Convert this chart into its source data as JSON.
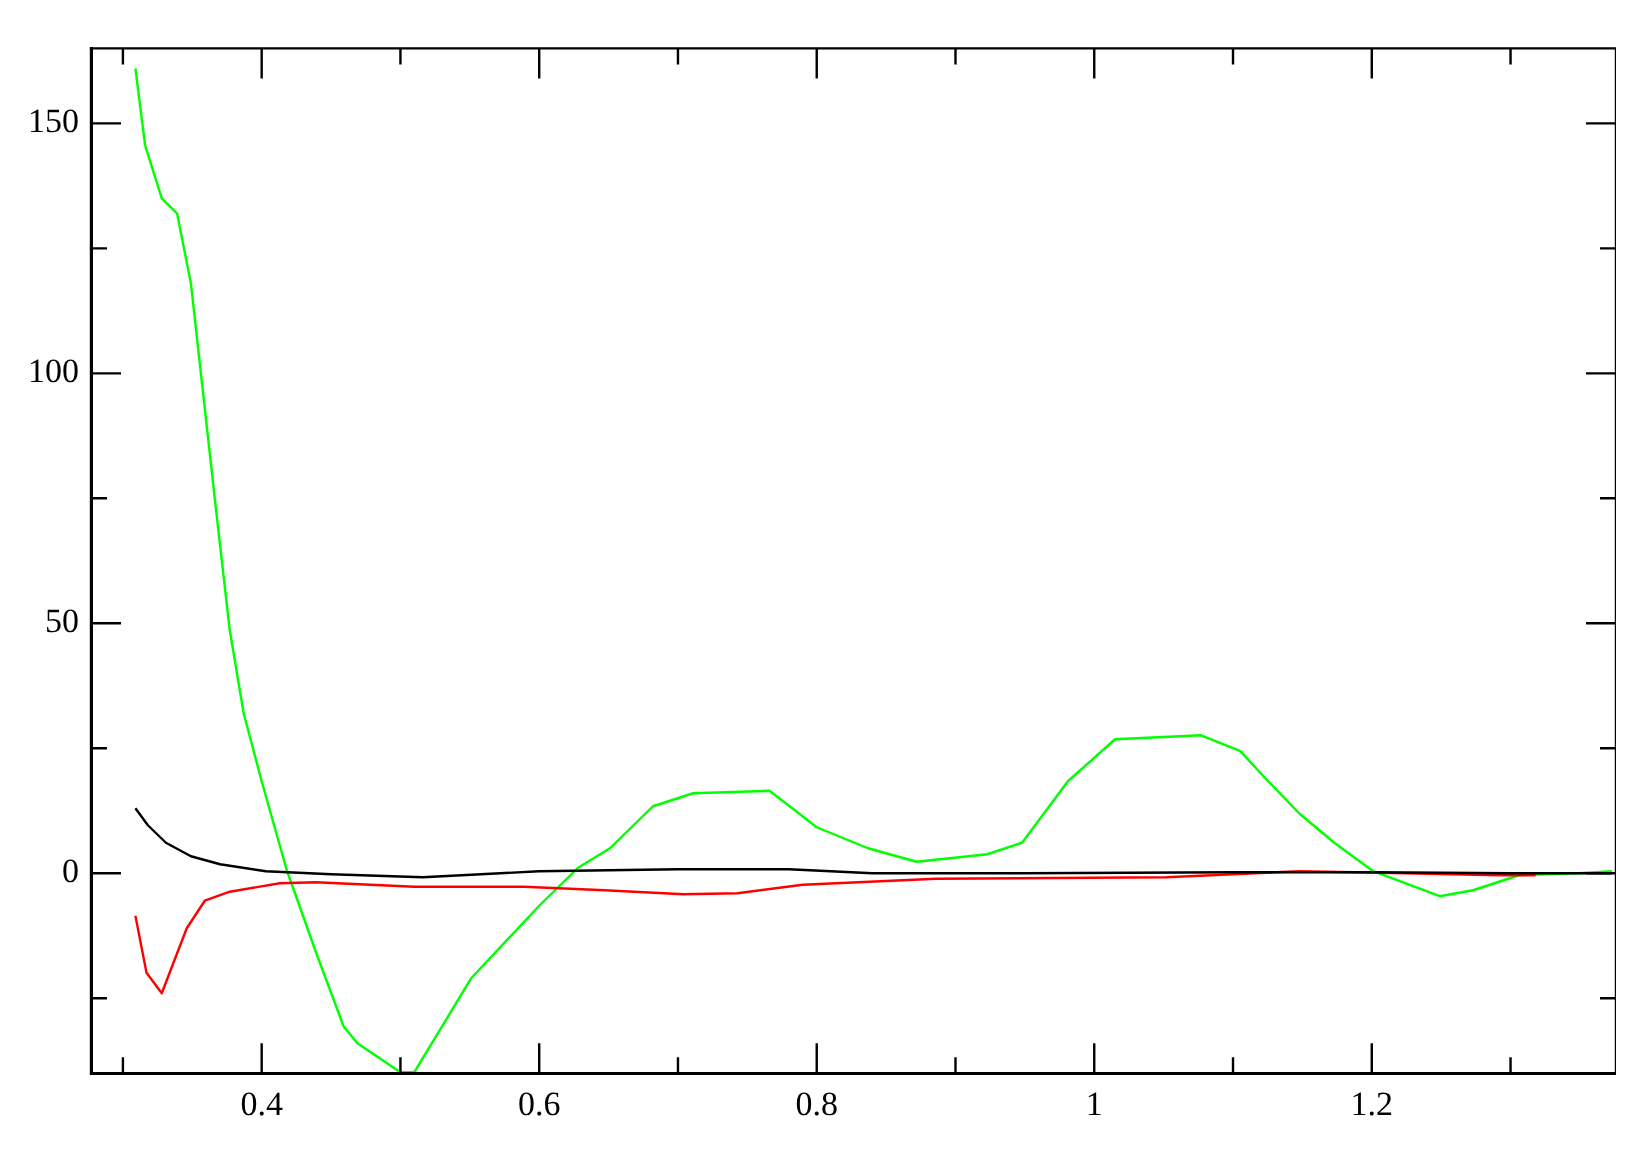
{
  "chart_data": {
    "type": "line",
    "xlim": [
      0.277,
      1.376
    ],
    "ylim": [
      -40,
      165
    ],
    "xticks": [
      {
        "value": 0.3,
        "label": null
      },
      0.4,
      {
        "value": 0.5,
        "label": null
      },
      0.6,
      {
        "value": 0.7,
        "label": null
      },
      0.8,
      {
        "value": 0.9,
        "label": null
      },
      1,
      {
        "value": 1.1,
        "label": null
      },
      1.2,
      {
        "value": 1.3,
        "label": null
      }
    ],
    "yticks": [
      {
        "value": -25,
        "label": null
      },
      0,
      {
        "value": 25,
        "label": null
      },
      50,
      {
        "value": 75,
        "label": null
      },
      100,
      {
        "value": 125,
        "label": null
      },
      150
    ],
    "grid": false,
    "legend": false,
    "marker": "none",
    "line_style": "solid",
    "series": [
      {
        "color": "#000000",
        "x": [
          0.309,
          0.318,
          0.331,
          0.349,
          0.37,
          0.403,
          0.45,
          0.516,
          0.6,
          0.7,
          0.78,
          0.84,
          0.95,
          1.1,
          1.2,
          1.3,
          1.373
        ],
        "values": [
          13,
          9.6,
          6.1,
          3.4,
          1.8,
          0.4,
          -0.2,
          -0.8,
          0.4,
          0.8,
          0.8,
          0,
          0,
          0.2,
          0.2,
          0,
          0
        ]
      },
      {
        "color": "#ff0000",
        "x": [
          0.309,
          0.317,
          0.328,
          0.346,
          0.359,
          0.377,
          0.413,
          0.439,
          0.51,
          0.589,
          0.647,
          0.704,
          0.743,
          0.79,
          0.886,
          1.052,
          1.148,
          1.224,
          1.292,
          1.318
        ],
        "values": [
          -8.5,
          -19.9,
          -24,
          -11,
          -5.5,
          -3.7,
          -2,
          -1.8,
          -2.7,
          -2.7,
          -3.4,
          -4.2,
          -4,
          -2.3,
          -1.1,
          -0.8,
          0.4,
          0,
          -0.4,
          -0.4
        ]
      },
      {
        "color": "#00ff00",
        "x": [
          0.309,
          0.316,
          0.328,
          0.339,
          0.349,
          0.357,
          0.367,
          0.377,
          0.387,
          0.4,
          0.418,
          0.439,
          0.459,
          0.469,
          0.5,
          0.51,
          0.551,
          0.6,
          0.628,
          0.651,
          0.682,
          0.711,
          0.766,
          0.8,
          0.837,
          0.872,
          0.923,
          0.948,
          0.981,
          1.015,
          1.077,
          1.105,
          1.124,
          1.148,
          1.173,
          1.201,
          1.249,
          1.273,
          1.306,
          1.349,
          1.373
        ],
        "values": [
          161,
          145.6,
          135,
          132,
          118,
          98,
          73,
          48.6,
          32,
          18.4,
          0.7,
          -15.7,
          -30.6,
          -34,
          -39.8,
          -39.8,
          -21,
          -6.5,
          1.1,
          5,
          13.4,
          16,
          16.5,
          9.2,
          5,
          2.3,
          3.8,
          6.1,
          18.4,
          26.8,
          27.6,
          24.5,
          18.8,
          11.9,
          6.1,
          0.4,
          -4.6,
          -3.4,
          -0.4,
          0,
          0.4
        ]
      }
    ]
  }
}
